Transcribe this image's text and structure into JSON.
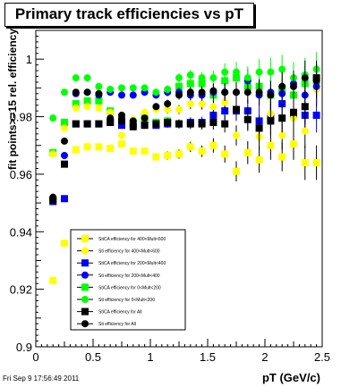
{
  "title": "Primary track efficiencies vs pT",
  "timestamp": "Fri Sep  9 17:56:49 2011",
  "chart_data": {
    "type": "scatter",
    "xlabel": "pT (GeV/c)",
    "ylabel": "fit points>=15 rel. efficiency",
    "xlim": [
      0,
      2.5
    ],
    "ylim": [
      0.9,
      1.01
    ],
    "xticks": [
      "0",
      "0.5",
      "1",
      "1.5",
      "2",
      "2.5"
    ],
    "yticks": [
      "0.9",
      "0.92",
      "0.94",
      "0.96",
      "0.98",
      "1"
    ],
    "legend_position": "lower-center",
    "x": [
      0.15,
      0.25,
      0.35,
      0.45,
      0.55,
      0.65,
      0.75,
      0.85,
      0.95,
      1.05,
      1.15,
      1.25,
      1.35,
      1.45,
      1.55,
      1.65,
      1.75,
      1.85,
      1.95,
      2.05,
      2.15,
      2.25,
      2.35,
      2.45
    ],
    "series": [
      {
        "name": "StiCA efficiency  for 400<Mult<600",
        "color": "#ffff00",
        "marker": "square",
        "values": [
          0.923,
          0.936,
          0.9685,
          0.9695,
          0.9695,
          0.969,
          0.9705,
          0.968,
          0.968,
          0.966,
          0.9665,
          0.967,
          0.9695,
          0.968,
          0.97,
          0.967,
          0.961,
          0.9675,
          0.965,
          0.97,
          0.966,
          0.9705,
          0.964,
          0.964
        ],
        "errors": [
          0.001,
          0.001,
          0.001,
          0.001,
          0.001,
          0.001,
          0.001,
          0.001,
          0.001,
          0.0012,
          0.0014,
          0.0016,
          0.0018,
          0.002,
          0.0025,
          0.003,
          0.0035,
          0.004,
          0.0045,
          0.005,
          0.005,
          0.0055,
          0.006,
          0.006
        ]
      },
      {
        "name": "Sti efficiency  for 400<Mult<600",
        "color": "#ffff00",
        "marker": "circle",
        "values": [
          0.967,
          0.976,
          0.983,
          0.9835,
          0.983,
          0.9815,
          0.9735,
          0.979,
          0.9815,
          0.9825,
          0.9825,
          0.9825,
          0.9845,
          0.9845,
          0.9835,
          0.985,
          0.9735,
          0.9795,
          0.973,
          0.981,
          0.9735,
          0.9795,
          0.975,
          0.9895
        ],
        "errors": [
          0.001,
          0.001,
          0.001,
          0.001,
          0.001,
          0.001,
          0.001,
          0.001,
          0.001,
          0.0012,
          0.0014,
          0.0016,
          0.0018,
          0.002,
          0.0025,
          0.003,
          0.0035,
          0.004,
          0.0045,
          0.005,
          0.005,
          0.0055,
          0.006,
          0.006
        ]
      },
      {
        "name": "StiCA efficiency  for 200<Mult<400",
        "color": "#0000ff",
        "marker": "square",
        "values": [
          0.9505,
          0.9515,
          0.9775,
          0.9775,
          0.9775,
          0.978,
          0.977,
          0.9775,
          0.9775,
          0.977,
          0.9775,
          0.9775,
          0.978,
          0.978,
          0.9805,
          0.982,
          0.982,
          0.982,
          0.9785,
          0.98,
          0.9845,
          0.9805,
          0.9805,
          0.9805
        ],
        "errors": [
          0.001,
          0.001,
          0.001,
          0.001,
          0.001,
          0.001,
          0.001,
          0.001,
          0.001,
          0.0012,
          0.0014,
          0.0016,
          0.0018,
          0.002,
          0.0025,
          0.003,
          0.0035,
          0.004,
          0.0045,
          0.005,
          0.005,
          0.0055,
          0.006,
          0.006
        ]
      },
      {
        "name": "Sti efficiency  for 200<Mult<400",
        "color": "#0000ff",
        "marker": "circle",
        "values": [
          0.9515,
          0.9665,
          0.988,
          0.9885,
          0.9875,
          0.9885,
          0.9875,
          0.9875,
          0.9885,
          0.9875,
          0.9885,
          0.9885,
          0.9875,
          0.9875,
          0.9885,
          0.9885,
          0.9885,
          0.9925,
          0.9875,
          0.9885,
          0.988,
          0.9915,
          0.9875,
          0.9905
        ],
        "errors": [
          0.001,
          0.001,
          0.001,
          0.001,
          0.001,
          0.001,
          0.001,
          0.001,
          0.001,
          0.0012,
          0.0014,
          0.0016,
          0.0018,
          0.002,
          0.0025,
          0.003,
          0.0035,
          0.004,
          0.0045,
          0.005,
          0.005,
          0.0055,
          0.006,
          0.006
        ]
      },
      {
        "name": "StiCA efficiency  for 0<Mult<200",
        "color": "#00ff00",
        "marker": "square",
        "values": [
          0.9675,
          0.978,
          0.9845,
          0.9855,
          0.9855,
          0.982,
          0.9795,
          0.9775,
          0.9795,
          0.978,
          0.9785,
          0.9905,
          0.9915,
          0.9915,
          0.9875,
          0.9925,
          0.9935,
          0.9905,
          0.9905,
          0.9875,
          0.9895,
          0.9875,
          0.9915,
          0.9925
        ],
        "errors": [
          0.001,
          0.001,
          0.001,
          0.001,
          0.001,
          0.001,
          0.001,
          0.001,
          0.001,
          0.0012,
          0.0014,
          0.0016,
          0.0018,
          0.002,
          0.0025,
          0.003,
          0.0035,
          0.004,
          0.0045,
          0.005,
          0.005,
          0.0055,
          0.006,
          0.006
        ]
      },
      {
        "name": "Sti efficiency  for 0<Mult<200",
        "color": "#00ff00",
        "marker": "circle",
        "values": [
          0.9795,
          0.9885,
          0.9935,
          0.9935,
          0.9905,
          0.9895,
          0.99,
          0.99,
          0.99,
          0.9885,
          0.9895,
          0.9935,
          0.9945,
          0.9935,
          0.9935,
          0.9955,
          0.9955,
          0.9935,
          0.9955,
          0.9955,
          0.9965,
          0.9935,
          0.9945,
          0.9965
        ],
        "errors": [
          0.001,
          0.001,
          0.001,
          0.001,
          0.001,
          0.001,
          0.001,
          0.001,
          0.001,
          0.0012,
          0.0014,
          0.0016,
          0.0018,
          0.002,
          0.0025,
          0.003,
          0.0035,
          0.004,
          0.0045,
          0.005,
          0.005,
          0.0055,
          0.006,
          0.006
        ]
      },
      {
        "name": "StiCA efficiency  for All",
        "color": "#000000",
        "marker": "square",
        "values": [
          0.951,
          0.9635,
          0.9775,
          0.9775,
          0.9775,
          0.978,
          0.9785,
          0.9765,
          0.977,
          0.9775,
          0.978,
          0.9775,
          0.9775,
          0.9775,
          0.978,
          0.9775,
          0.9825,
          0.979,
          0.976,
          0.9785,
          0.9795,
          0.9815,
          0.9835,
          0.9935
        ],
        "errors": [
          0.001,
          0.001,
          0.001,
          0.001,
          0.001,
          0.001,
          0.001,
          0.001,
          0.001,
          0.0012,
          0.0014,
          0.0016,
          0.0018,
          0.002,
          0.0025,
          0.003,
          0.0035,
          0.004,
          0.0045,
          0.005,
          0.005,
          0.0055,
          0.006,
          0.006
        ]
      },
      {
        "name": "Sti efficiency  for All",
        "color": "#000000",
        "marker": "circle",
        "values": [
          0.952,
          0.9715,
          0.9885,
          0.9885,
          0.988,
          0.9795,
          0.9805,
          0.9785,
          0.9795,
          0.9835,
          0.9845,
          0.9875,
          0.9885,
          0.9885,
          0.989,
          0.9885,
          0.9885,
          0.9885,
          0.9885,
          0.9875,
          0.9905,
          0.9905,
          0.9935,
          0.9925
        ],
        "errors": [
          0.001,
          0.001,
          0.001,
          0.001,
          0.001,
          0.001,
          0.001,
          0.001,
          0.001,
          0.0012,
          0.0014,
          0.0016,
          0.0018,
          0.002,
          0.0025,
          0.003,
          0.0035,
          0.004,
          0.0045,
          0.005,
          0.005,
          0.0055,
          0.006,
          0.006
        ]
      }
    ]
  }
}
